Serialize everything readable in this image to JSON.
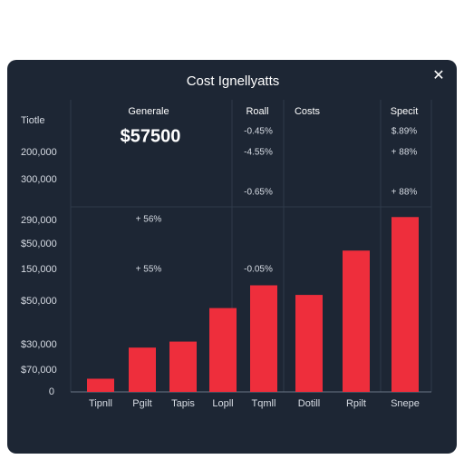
{
  "chart_data": {
    "type": "bar",
    "title": "Cost Ignellyatts",
    "close_label": "✕",
    "column_headers": [
      "Generale",
      "Roall",
      "Costs",
      "Specit"
    ],
    "headline_value": "$57500",
    "annotations": [
      "-0.45%",
      "-4.55%",
      "-0.65%",
      "-0.05%",
      "$.89%",
      "+ 88%",
      "+ 88%",
      "+ 56%",
      "+ 55%"
    ],
    "y_labels": [
      "Tiotle",
      "200,000",
      "300,000",
      "290,000",
      "$50,000",
      "150,000",
      "$50,000",
      "$30,000",
      "$70,000",
      "0"
    ],
    "categories": [
      "Tipnll",
      "Pgilt",
      "Tapis",
      "Lopll",
      "Tqmll",
      "Dotill",
      "Rpilt",
      "Snepe"
    ],
    "values": [
      11000,
      37000,
      42000,
      70000,
      89000,
      81000,
      118000,
      146000
    ],
    "color": "#ee2e3c",
    "ylim": [
      0,
      200000
    ]
  }
}
